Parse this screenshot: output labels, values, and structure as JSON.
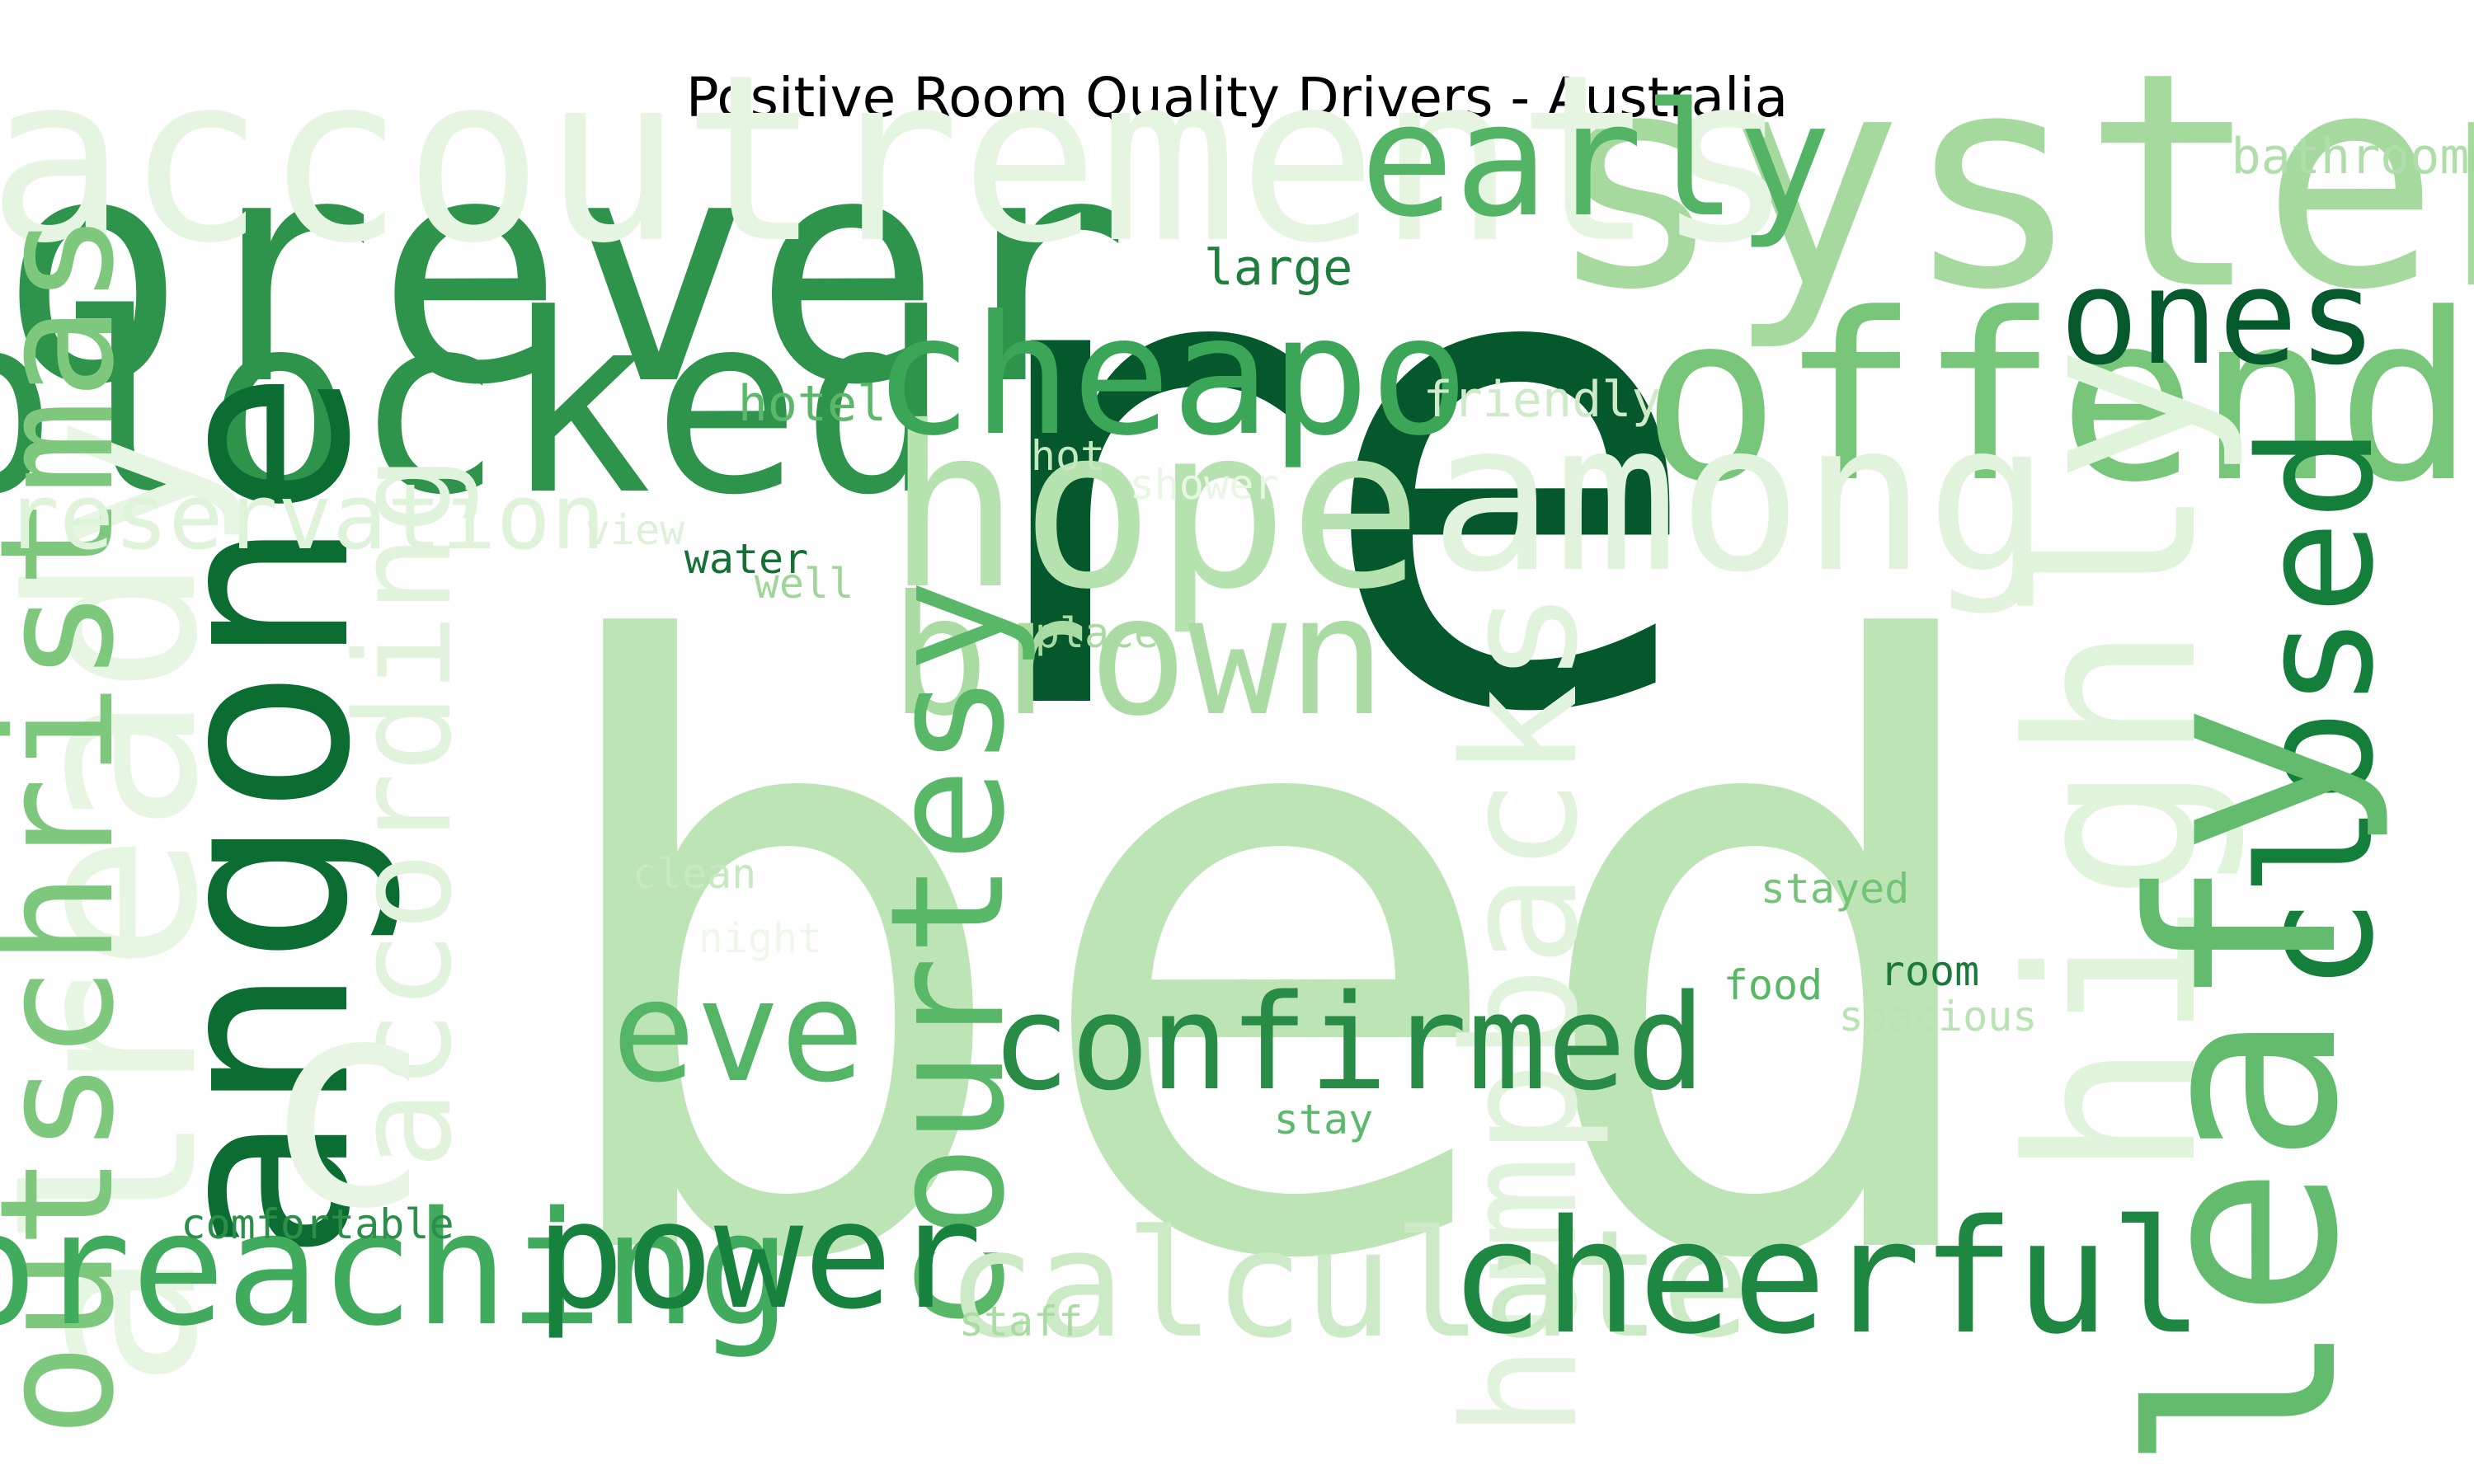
{
  "chart_data": {
    "type": "wordcloud",
    "title": "Positive Room Quality Drivers - Australia",
    "colormap": "Greens",
    "words": [
      {
        "text": "bed",
        "weight": 1.0,
        "color": "#bce4b5",
        "rotate": false
      },
      {
        "text": "re",
        "weight": 0.8,
        "color": "#05582b",
        "rotate": false
      },
      {
        "text": "forever",
        "weight": 0.38,
        "color": "#2e944b",
        "rotate": false
      },
      {
        "text": "systen",
        "weight": 0.36,
        "color": "#a5d99e",
        "rotate": false
      },
      {
        "text": "accoutrements",
        "weight": 0.28,
        "color": "#e6f5e1",
        "rotate": false
      },
      {
        "text": "blocked",
        "weight": 0.3,
        "color": "#2e934b",
        "rotate": false
      },
      {
        "text": "offends",
        "weight": 0.28,
        "color": "#77c679",
        "rotate": false
      },
      {
        "text": "hope",
        "weight": 0.27,
        "color": "#b6e2b0",
        "rotate": false
      },
      {
        "text": "among",
        "weight": 0.25,
        "color": "#e1f3dc",
        "rotate": false
      },
      {
        "text": "cheapo",
        "weight": 0.2,
        "color": "#3ca658",
        "rotate": false
      },
      {
        "text": "early",
        "weight": 0.19,
        "color": "#53b466",
        "rotate": false
      },
      {
        "text": "ones",
        "weight": 0.16,
        "color": "#05592c",
        "rotate": false
      },
      {
        "text": "brown",
        "weight": 0.2,
        "color": "#a9dba3",
        "rotate": false
      },
      {
        "text": "angone",
        "weight": 0.3,
        "color": "#0c6d32",
        "rotate": true
      },
      {
        "text": "already",
        "weight": 0.28,
        "color": "#e7f5e3",
        "rotate": true
      },
      {
        "text": "outschristmas",
        "weight": 0.19,
        "color": "#7dc87d",
        "rotate": true
      },
      {
        "text": "according",
        "weight": 0.16,
        "color": "#e2f3dd",
        "rotate": true
      },
      {
        "text": "c",
        "weight": 0.35,
        "color": "#e8f5e4",
        "rotate": false
      },
      {
        "text": "highly",
        "weight": 0.28,
        "color": "#e0f3db",
        "rotate": true
      },
      {
        "text": "closed",
        "weight": 0.19,
        "color": "#147e3b",
        "rotate": true
      },
      {
        "text": "leafy",
        "weight": 0.31,
        "color": "#63bb6d",
        "rotate": true
      },
      {
        "text": "courtesy",
        "weight": 0.19,
        "color": "#59b768",
        "rotate": true
      },
      {
        "text": "humpbacks",
        "weight": 0.19,
        "color": "#e1f3dc",
        "rotate": true
      },
      {
        "text": "eve",
        "weight": 0.17,
        "color": "#55b567",
        "rotate": false
      },
      {
        "text": "confirmed",
        "weight": 0.16,
        "color": "#288c46",
        "rotate": false
      },
      {
        "text": "breaching",
        "weight": 0.19,
        "color": "#41ab5d",
        "rotate": false
      },
      {
        "text": "power",
        "weight": 0.18,
        "color": "#16823d",
        "rotate": false
      },
      {
        "text": "calculate",
        "weight": 0.18,
        "color": "#cdeac6",
        "rotate": false
      },
      {
        "text": "cheerful",
        "weight": 0.19,
        "color": "#1e8741",
        "rotate": false
      },
      {
        "text": "reservation",
        "weight": 0.11,
        "color": "#dff2da",
        "rotate": false
      },
      {
        "text": "bathroom",
        "weight": 0.06,
        "color": "#b0deaa",
        "rotate": false
      },
      {
        "text": "large",
        "weight": 0.06,
        "color": "#1d7e3e",
        "rotate": false
      },
      {
        "text": "hotel",
        "weight": 0.06,
        "color": "#5bb86a",
        "rotate": false
      },
      {
        "text": "friendly",
        "weight": 0.06,
        "color": "#cfeac8",
        "rotate": false
      },
      {
        "text": "hot",
        "weight": 0.05,
        "color": "#c5e8bf",
        "rotate": false
      },
      {
        "text": "shower",
        "weight": 0.05,
        "color": "#e8f6e4",
        "rotate": false
      },
      {
        "text": "view",
        "weight": 0.05,
        "color": "#dcf1d7",
        "rotate": false
      },
      {
        "text": "water",
        "weight": 0.05,
        "color": "#166f34",
        "rotate": false
      },
      {
        "text": "well",
        "weight": 0.05,
        "color": "#9fd698",
        "rotate": false
      },
      {
        "text": "place",
        "weight": 0.05,
        "color": "#a8daa1",
        "rotate": false
      },
      {
        "text": "clean",
        "weight": 0.05,
        "color": "#c7e8c1",
        "rotate": false
      },
      {
        "text": "night",
        "weight": 0.05,
        "color": "#eef8ea",
        "rotate": false
      },
      {
        "text": "stayed",
        "weight": 0.05,
        "color": "#74c476",
        "rotate": false
      },
      {
        "text": "food",
        "weight": 0.05,
        "color": "#59b768",
        "rotate": false
      },
      {
        "text": "room",
        "weight": 0.05,
        "color": "#1b7a3b",
        "rotate": false
      },
      {
        "text": "spacious",
        "weight": 0.05,
        "color": "#b9e3b2",
        "rotate": false
      },
      {
        "text": "stay",
        "weight": 0.05,
        "color": "#5db96b",
        "rotate": false
      },
      {
        "text": "comfortable",
        "weight": 0.05,
        "color": "#2c8f49",
        "rotate": false
      },
      {
        "text": "staff",
        "weight": 0.05,
        "color": "#a9dba3",
        "rotate": false
      }
    ]
  }
}
